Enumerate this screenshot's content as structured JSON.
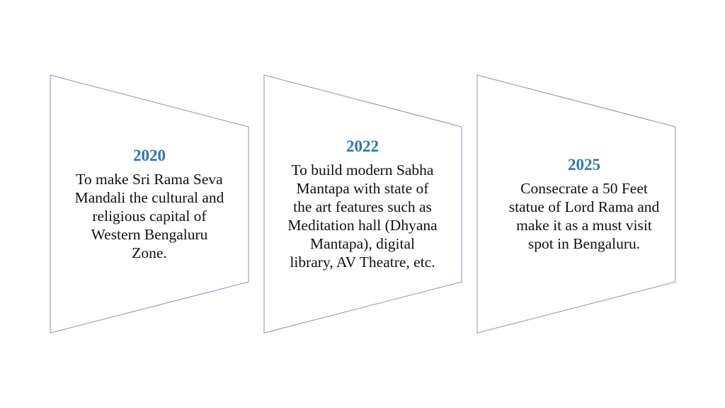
{
  "colors": {
    "year": "#2E75B6",
    "outline": "#8497B0",
    "text": "#111111"
  },
  "milestones": [
    {
      "year": "2020",
      "lines": [
        "To make Sri Rama Seva",
        "Mandali the cultural and",
        "religious capital of",
        "Western Bengaluru",
        "Zone."
      ]
    },
    {
      "year": "2022",
      "lines": [
        "To build modern Sabha",
        "Mantapa with state of",
        "the art features such as",
        "Meditation hall (Dhyana",
        "Mantapa), digital",
        "library, AV Theatre, etc."
      ]
    },
    {
      "year": "2025",
      "lines": [
        "Consecrate a 50 Feet",
        "statue of Lord Rama and",
        "make it as a must visit",
        "spot in Bengaluru."
      ]
    }
  ]
}
